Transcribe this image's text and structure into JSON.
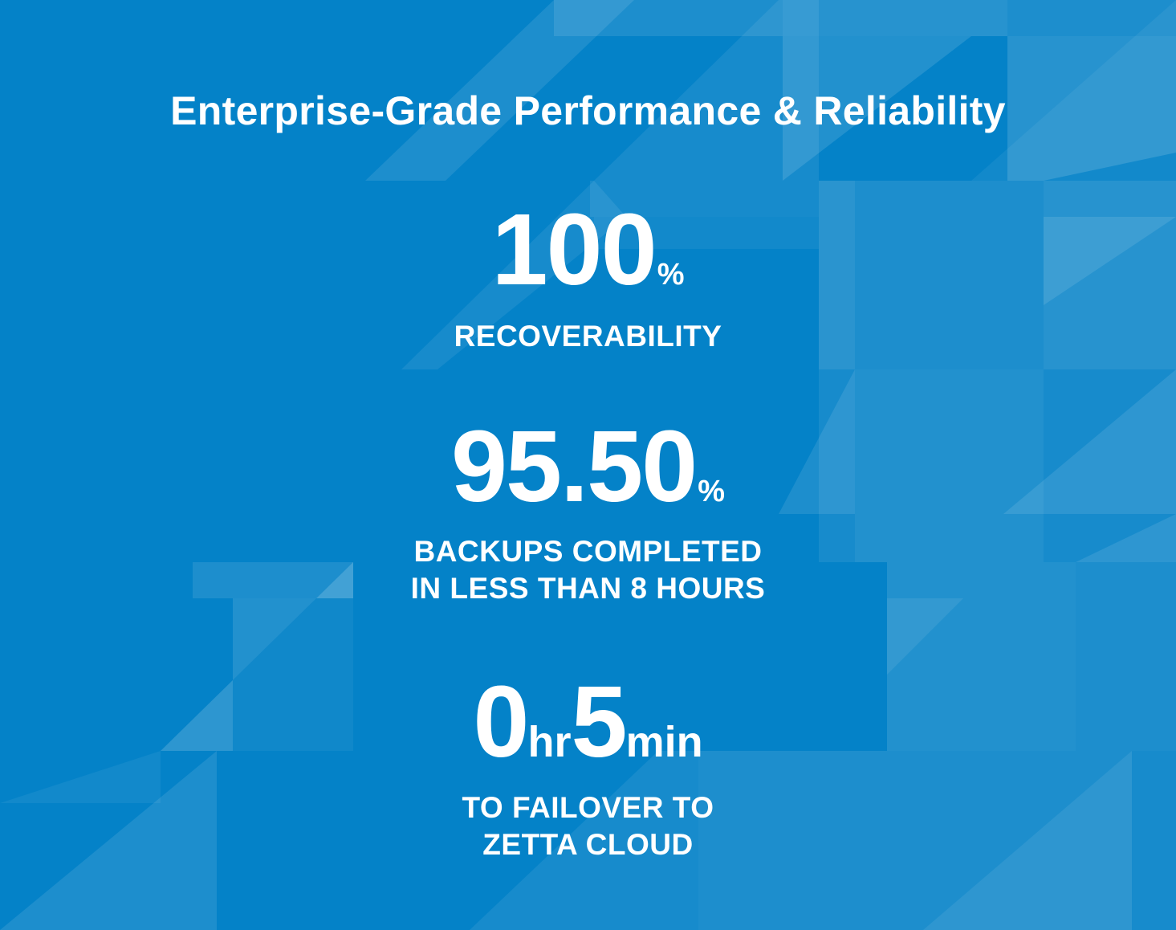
{
  "title": "Enterprise-Grade Performance & Reliability",
  "stats": [
    {
      "value": "100",
      "unit": "%",
      "label_lines": [
        "RECOVERABILITY"
      ]
    },
    {
      "value": "95.50",
      "unit": "%",
      "label_lines": [
        "BACKUPS COMPLETED",
        "IN LESS THAN 8 HOURS"
      ]
    },
    {
      "hours_value": "0",
      "hours_unit": "hr",
      "minutes_value": "5",
      "minutes_unit": "min",
      "label_lines": [
        "TO FAILOVER TO",
        "ZETTA CLOUD"
      ]
    }
  ],
  "colors": {
    "background": "#0482c8",
    "pattern_light": "#3a9ad6",
    "text": "#ffffff"
  }
}
